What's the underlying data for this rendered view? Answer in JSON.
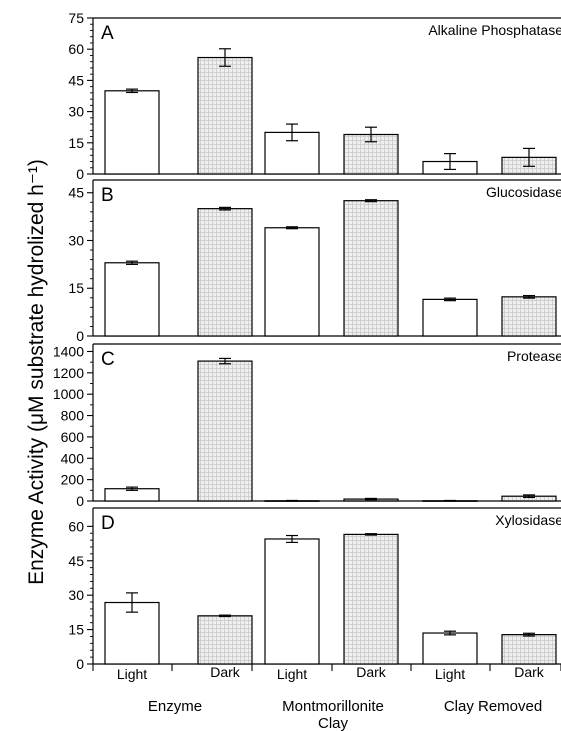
{
  "figure": {
    "ylabel": "Enzyme Activity (μM substrate hydrolized h⁻¹)"
  },
  "colors": {
    "light_fill": "#ffffff",
    "dark_fill": "#efefef",
    "dark_grid": "#c9c9c9",
    "stroke": "#000000"
  },
  "chart_data": [
    {
      "type": "bar",
      "panel": "A",
      "title": "Alkaline Phosphatase",
      "categories": [
        "Light",
        "Dark",
        "Light",
        "Dark",
        "Light",
        "Dark"
      ],
      "values": [
        40,
        56,
        20,
        19,
        6,
        8
      ],
      "errors": [
        0.8,
        4.2,
        4,
        3.5,
        3.8,
        4.3
      ],
      "ylim": [
        0,
        75
      ],
      "yticks": [
        0,
        15,
        30,
        45,
        60,
        75
      ],
      "fill": [
        "light",
        "dark",
        "light",
        "dark",
        "light",
        "dark"
      ]
    },
    {
      "type": "bar",
      "panel": "B",
      "title": "Glucosidase",
      "categories": [
        "Light",
        "Dark",
        "Light",
        "Dark",
        "Light",
        "Dark"
      ],
      "values": [
        23,
        40,
        34,
        42.5,
        11.5,
        12.3
      ],
      "errors": [
        0.5,
        0.4,
        0.3,
        0.3,
        0.4,
        0.4
      ],
      "ylim": [
        0,
        49
      ],
      "yticks": [
        0,
        15,
        30,
        45
      ],
      "fill": [
        "light",
        "dark",
        "light",
        "dark",
        "light",
        "dark"
      ]
    },
    {
      "type": "bar",
      "panel": "C",
      "title": "Protease",
      "categories": [
        "Light",
        "Dark",
        "Light",
        "Dark",
        "Light",
        "Dark"
      ],
      "values": [
        115,
        1310,
        2,
        18,
        2,
        45
      ],
      "errors": [
        15,
        25,
        3,
        6,
        3,
        12
      ],
      "ylim": [
        0,
        1470
      ],
      "yticks": [
        0,
        200,
        400,
        600,
        800,
        1000,
        1200,
        1400
      ],
      "fill": [
        "light",
        "dark",
        "light",
        "dark",
        "light",
        "dark"
      ]
    },
    {
      "type": "bar",
      "panel": "D",
      "title": "Xylosidase",
      "categories": [
        "Light",
        "Dark",
        "Light",
        "Dark",
        "Light",
        "Dark"
      ],
      "values": [
        26.8,
        21,
        54.5,
        56.5,
        13.5,
        12.8
      ],
      "errors": [
        4.2,
        0.3,
        1.5,
        0.3,
        0.8,
        0.6
      ],
      "ylim": [
        0,
        68
      ],
      "yticks": [
        0,
        15,
        30,
        45,
        60
      ],
      "fill": [
        "light",
        "dark",
        "light",
        "dark",
        "light",
        "dark"
      ]
    }
  ],
  "x_groups": [
    "Enzyme",
    "Montmorillonite\nClay",
    "Clay Removed"
  ]
}
